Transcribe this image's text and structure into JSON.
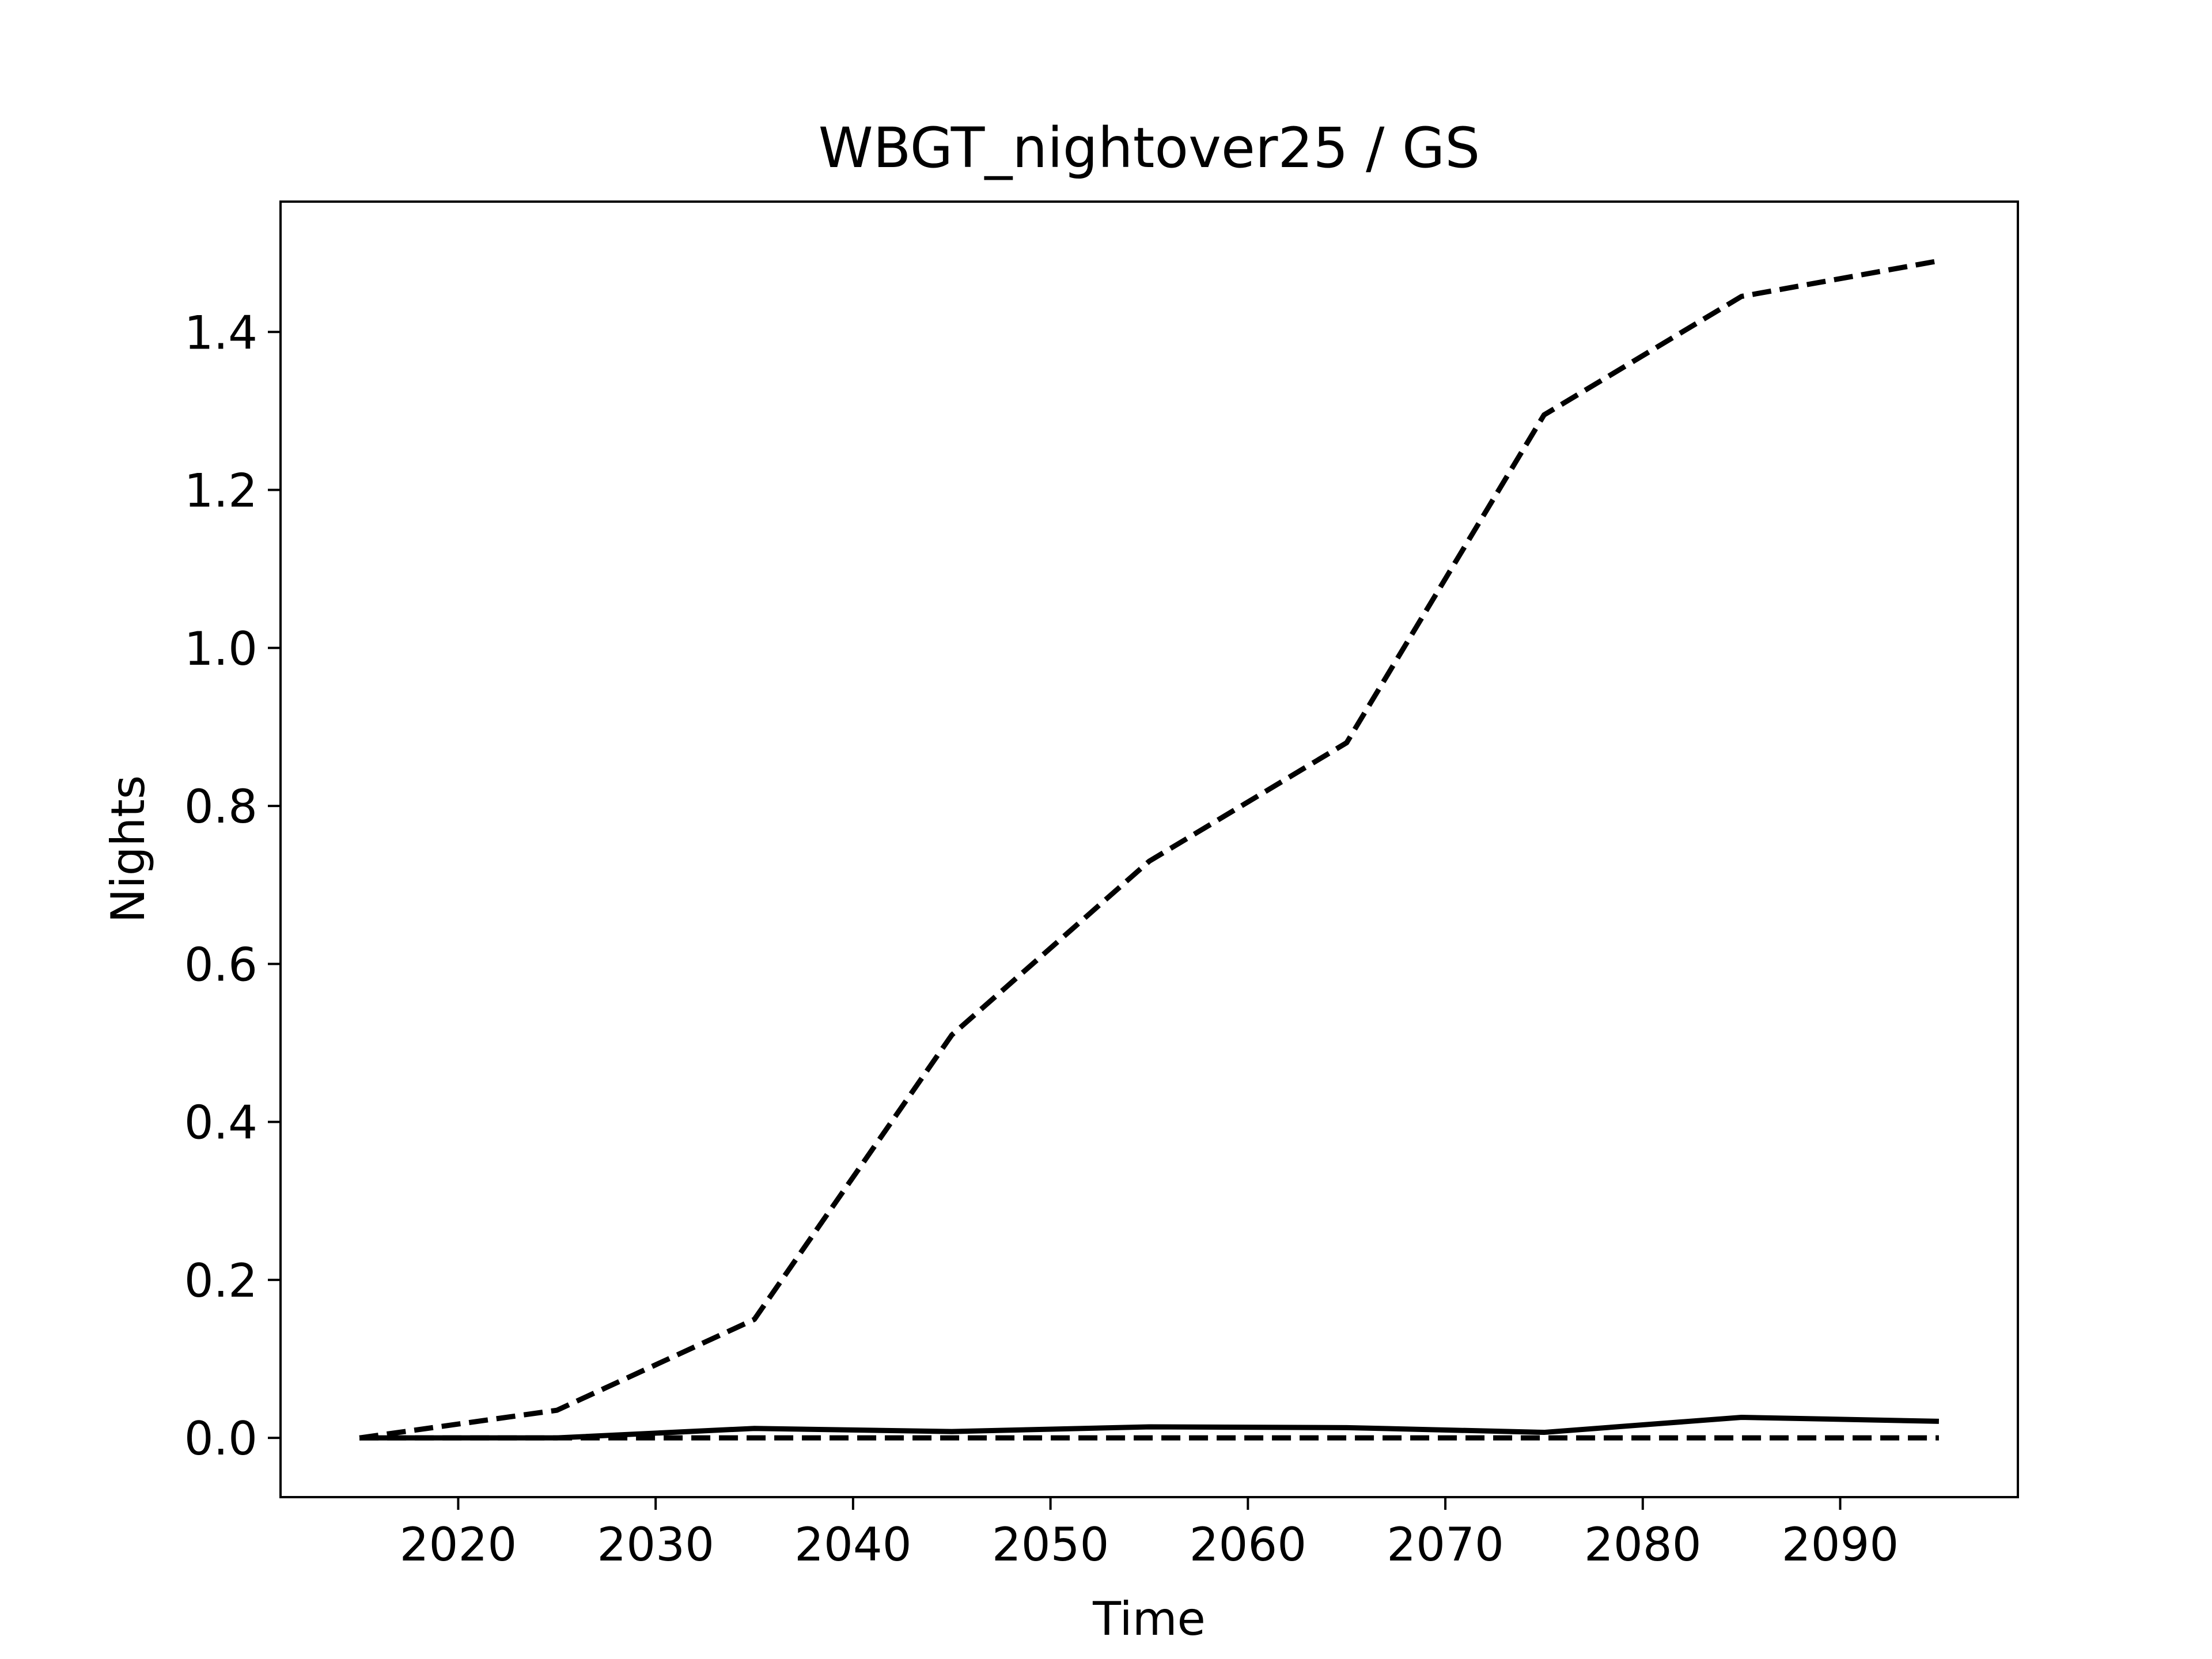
{
  "chart_data": {
    "type": "line",
    "title": "WBGT_nightover25 / GS",
    "xlabel": "Time",
    "ylabel": "Nights",
    "xlim": [
      2011,
      2099
    ],
    "ylim": [
      -0.075,
      1.565
    ],
    "x": [
      2015,
      2025,
      2035,
      2045,
      2055,
      2065,
      2075,
      2085,
      2095
    ],
    "xticks": [
      2020,
      2030,
      2040,
      2050,
      2060,
      2070,
      2080,
      2090
    ],
    "yticks": [
      0.0,
      0.2,
      0.4,
      0.6,
      0.8,
      1.0,
      1.2,
      1.4
    ],
    "xtick_labels": [
      "2020",
      "2030",
      "2040",
      "2050",
      "2060",
      "2070",
      "2080",
      "2090"
    ],
    "ytick_labels": [
      "0.0",
      "0.2",
      "0.4",
      "0.6",
      "0.8",
      "1.0",
      "1.2",
      "1.4"
    ],
    "grid": false,
    "series": [
      {
        "values": [
          0.0,
          0.035,
          0.15,
          0.51,
          0.73,
          0.88,
          1.295,
          1.445,
          1.49
        ],
        "style": "dashed",
        "color": "#000000"
      },
      {
        "values": [
          0.0,
          0.0,
          0.012,
          0.008,
          0.014,
          0.013,
          0.007,
          0.026,
          0.021
        ],
        "style": "solid",
        "color": "#000000"
      },
      {
        "values": [
          0.0,
          0.0,
          0.0,
          0.0,
          0.0,
          0.0,
          0.0,
          0.0,
          0.0
        ],
        "style": "dashed",
        "color": "#000000"
      }
    ]
  }
}
